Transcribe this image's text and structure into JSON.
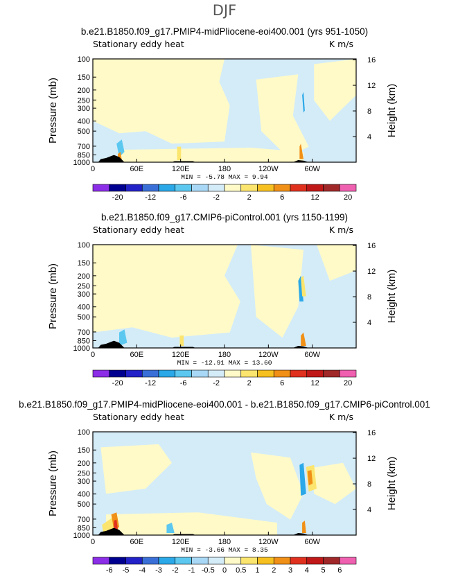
{
  "figure_title": "DJF",
  "chart_data": [
    {
      "type": "heatmap",
      "title": "b.e21.B1850.f09_g17.PMIP4-midPliocene-eoi400.001 (yrs 951-1050)",
      "left_label": "Stationary eddy heat",
      "right_label": "K m/s",
      "ylabel": "Pressure (mb)",
      "ylabel_right": "Height (km)",
      "x_ticks": [
        "0",
        "60E",
        "120E",
        "180",
        "120W",
        "60W"
      ],
      "y_ticks": [
        "100",
        "150",
        "200",
        "250",
        "300",
        "400",
        "500",
        "700",
        "850",
        "1000"
      ],
      "y_ticks_right": [
        "16",
        "12",
        "8",
        "4"
      ],
      "stats": "MIN =   -5.78   MAX =    9.94",
      "min": -5.78,
      "max": 9.94,
      "colorbar_labels": [
        "-20",
        "-12",
        "-6",
        "-2",
        "2",
        "6",
        "12",
        "20"
      ]
    },
    {
      "type": "heatmap",
      "title": "b.e21.B1850.f09_g17.CMIP6-piControl.001 (yrs 1150-1199)",
      "left_label": "Stationary eddy heat",
      "right_label": "K m/s",
      "ylabel": "Pressure (mb)",
      "ylabel_right": "Height (km)",
      "x_ticks": [
        "0",
        "60E",
        "120E",
        "180",
        "120W",
        "60W"
      ],
      "y_ticks": [
        "100",
        "150",
        "200",
        "250",
        "300",
        "400",
        "500",
        "700",
        "850",
        "1000"
      ],
      "y_ticks_right": [
        "16",
        "12",
        "8",
        "4"
      ],
      "stats": "MIN =  -12.91   MAX =   13.60",
      "min": -12.91,
      "max": 13.6,
      "colorbar_labels": [
        "-20",
        "-12",
        "-6",
        "-2",
        "2",
        "6",
        "12",
        "20"
      ]
    },
    {
      "type": "heatmap",
      "title": "b.e21.B1850.f09_g17.PMIP4-midPliocene-eoi400.001 - b.e21.B1850.f09_g17.CMIP6-piControl.001",
      "left_label": "Stationary eddy heat",
      "right_label": "K m/s",
      "ylabel": "Pressure (mb)",
      "ylabel_right": "Height (km)",
      "x_ticks": [
        "0",
        "60E",
        "120E",
        "180",
        "120W",
        "60W"
      ],
      "y_ticks": [
        "100",
        "150",
        "200",
        "250",
        "300",
        "400",
        "500",
        "700",
        "850",
        "1000"
      ],
      "y_ticks_right": [
        "16",
        "12",
        "8",
        "4"
      ],
      "stats": "MIN =   -3.66   MAX =    8.35",
      "min": -3.66,
      "max": 8.35,
      "colorbar_labels": [
        "-6",
        "-5",
        "-4",
        "-3",
        "-2",
        "-1",
        "-0.5",
        "0",
        "0.5",
        "1",
        "2",
        "3",
        "4",
        "5",
        "6"
      ]
    }
  ],
  "colorbar_colors": [
    "#8c2ee8",
    "#000090",
    "#2222c8",
    "#3a6fd8",
    "#2aa8e8",
    "#5cc8f0",
    "#a8d8f5",
    "#d4ecf8",
    "#fffac8",
    "#fbe56e",
    "#f6c020",
    "#f19016",
    "#e0301e",
    "#c01818",
    "#a02828",
    "#f060b0"
  ],
  "field_colors": {
    "light_blue": "#d4ecf8",
    "light_yellow": "#fffac8",
    "yellow": "#fbe56e",
    "orange": "#f19016",
    "red": "#e0301e",
    "blue": "#2aa8e8",
    "mid_blue": "#5cc8f0",
    "topography": "#000000"
  }
}
